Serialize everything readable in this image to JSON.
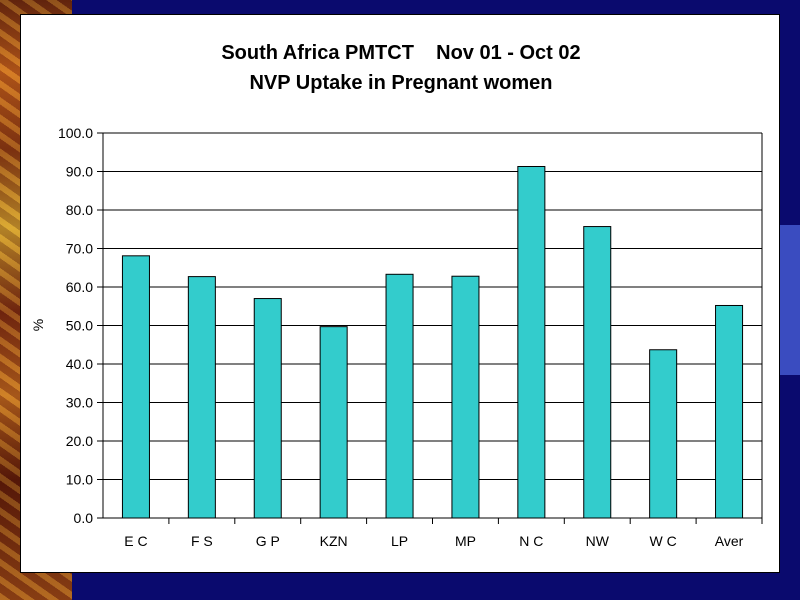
{
  "chart_data": {
    "type": "bar",
    "title_line1": "South Africa PMTCT    Nov 01 - Oct 02",
    "title_line2": "NVP Uptake in Pregnant women",
    "ylabel": "%",
    "xlabel": "",
    "ylim": [
      0,
      100
    ],
    "ytick_step": 10,
    "ytick_labels": [
      "0.0",
      "10.0",
      "20.0",
      "30.0",
      "40.0",
      "50.0",
      "60.0",
      "70.0",
      "80.0",
      "90.0",
      "100.0"
    ],
    "categories": [
      "E C",
      "F S",
      "G P",
      "KZN",
      "LP",
      "MP",
      "N C",
      "NW",
      "W C",
      "Aver"
    ],
    "values": [
      68.1,
      62.7,
      57.0,
      49.7,
      63.3,
      62.8,
      91.3,
      75.7,
      43.7,
      55.2
    ],
    "grid": true,
    "legend": "none",
    "bar_color": "#33cccc"
  }
}
